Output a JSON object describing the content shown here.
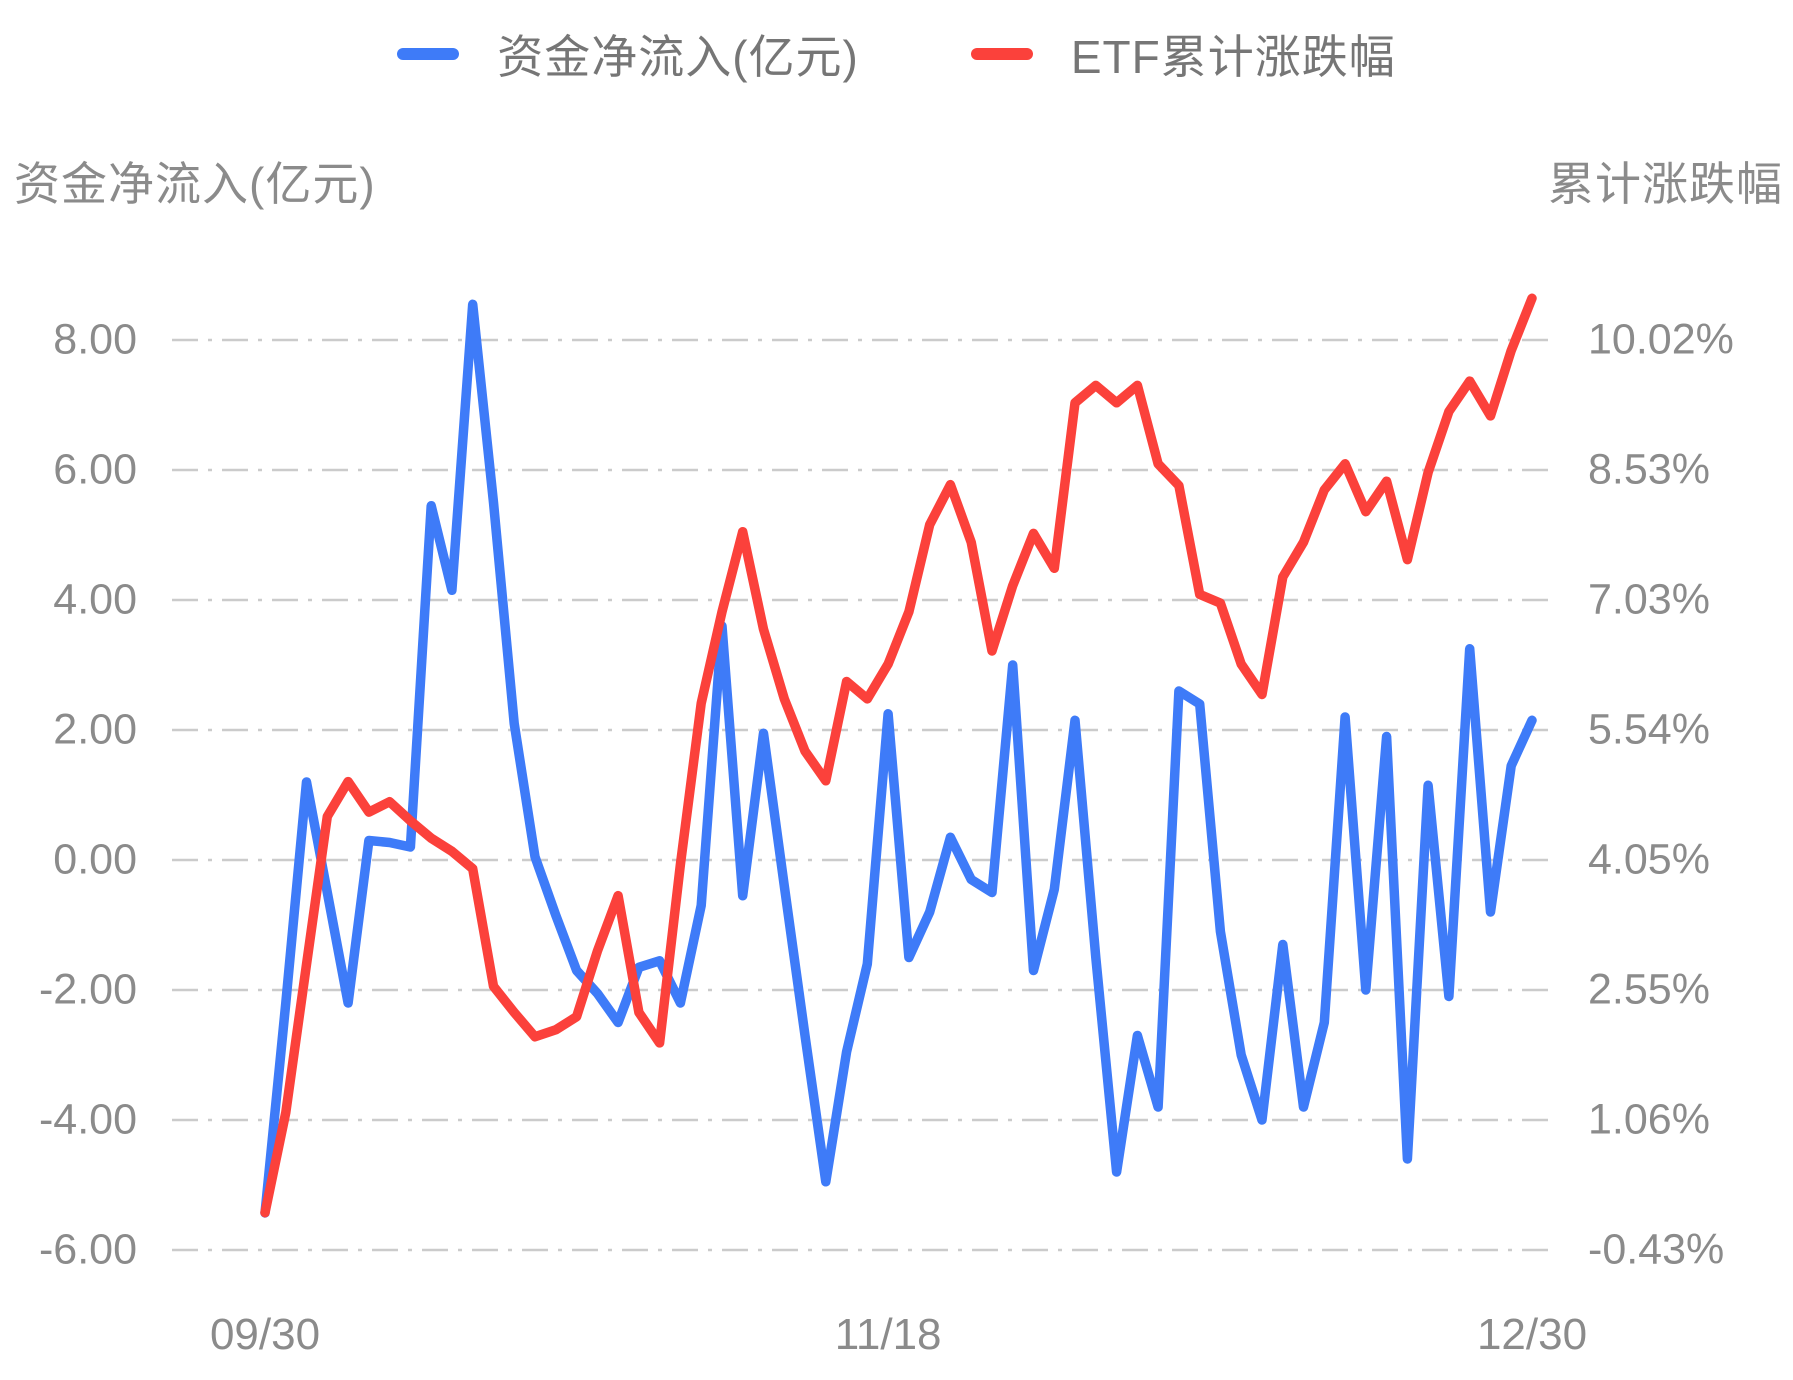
{
  "chart_data": {
    "type": "line",
    "title": "",
    "n_points": 62,
    "x_labels": [
      "09/30",
      "11/18",
      "12/30"
    ],
    "x_label_indices": [
      0,
      30,
      61
    ],
    "grid": {
      "style": "dash-dot",
      "color": "#cbcbcb",
      "horizontal": true,
      "vertical": false
    },
    "legend_position": "top-center",
    "left_axis": {
      "title": "资金净流入(亿元)",
      "ticks": [
        "8.00",
        "6.00",
        "4.00",
        "2.00",
        "0.00",
        "-2.00",
        "-4.00",
        "-6.00"
      ],
      "tick_values": [
        8,
        6,
        4,
        2,
        0,
        -2,
        -4,
        -6
      ],
      "ylim": [
        -6,
        8
      ]
    },
    "right_axis": {
      "title": "累计涨跌幅",
      "ticks": [
        "10.02%",
        "8.53%",
        "7.03%",
        "5.54%",
        "4.05%",
        "2.55%",
        "1.06%",
        "-0.43%"
      ],
      "tick_values": [
        10.02,
        8.53,
        7.03,
        5.54,
        4.05,
        2.55,
        1.06,
        -0.43
      ],
      "ylim": [
        -0.43,
        10.02
      ]
    },
    "series": [
      {
        "name": "资金净流入(亿元)",
        "axis": "left",
        "color": "#3E7BF8",
        "values": [
          -5.43,
          -2.2,
          1.2,
          -0.5,
          -2.2,
          0.3,
          0.27,
          0.2,
          5.45,
          4.15,
          8.55,
          5.5,
          2.1,
          0.05,
          -0.85,
          -1.7,
          -2.05,
          -2.5,
          -1.65,
          -1.55,
          -2.2,
          -0.7,
          3.6,
          -0.55,
          1.95,
          -0.4,
          -2.7,
          -4.95,
          -2.95,
          -1.6,
          2.25,
          -1.5,
          -0.8,
          0.35,
          -0.3,
          -0.5,
          3.0,
          -1.7,
          -0.45,
          2.15,
          -1.5,
          -4.8,
          -2.7,
          -3.8,
          2.6,
          2.4,
          -1.1,
          -3.0,
          -4.0,
          -1.3,
          -3.8,
          -2.5,
          2.2,
          -2.0,
          1.9,
          -4.6,
          1.15,
          -2.1,
          3.25,
          -0.8,
          1.45,
          2.15
        ]
      },
      {
        "name": "ETF累计涨跌幅",
        "axis": "right",
        "color": "#FB413B",
        "values": [
          0.0,
          1.15,
          2.85,
          4.55,
          4.95,
          4.6,
          4.72,
          4.5,
          4.3,
          4.15,
          3.95,
          2.6,
          2.3,
          2.02,
          2.1,
          2.25,
          3.0,
          3.64,
          2.3,
          1.95,
          4.0,
          5.85,
          6.9,
          7.82,
          6.7,
          5.9,
          5.3,
          4.96,
          6.1,
          5.9,
          6.3,
          6.9,
          7.9,
          8.36,
          7.7,
          6.45,
          7.2,
          7.8,
          7.4,
          9.3,
          9.5,
          9.3,
          9.5,
          8.6,
          8.35,
          7.1,
          7.0,
          6.3,
          5.95,
          7.3,
          7.7,
          8.3,
          8.6,
          8.05,
          8.4,
          7.5,
          8.5,
          9.2,
          9.55,
          9.15,
          9.9,
          10.5
        ]
      }
    ]
  }
}
